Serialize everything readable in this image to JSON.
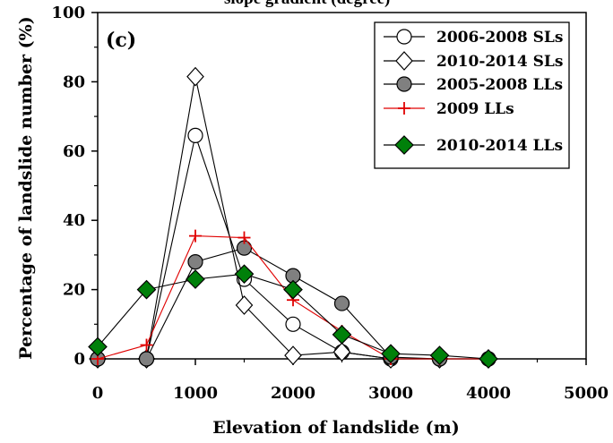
{
  "chart_data": {
    "type": "line",
    "title": "slope gradient (degree)",
    "panel_label": "(c)",
    "xlabel": "Elevation of landslide (m)",
    "ylabel": "Percentage of landslide number (%)",
    "xlim": [
      0,
      5000
    ],
    "ylim": [
      0,
      100
    ],
    "xticks": [
      "0",
      "1000",
      "2000",
      "3000",
      "4000",
      "5000"
    ],
    "yticks": [
      "0",
      "20",
      "40",
      "60",
      "80",
      "100"
    ],
    "legend_position": "top-right",
    "series": [
      {
        "name": "2006-2008 SLs",
        "marker": "circle-open",
        "x": [
          0,
          500,
          1000,
          1500,
          2000,
          2500,
          3000,
          3500,
          4000
        ],
        "y": [
          0,
          0,
          64.5,
          23,
          10,
          2,
          0,
          0,
          0
        ]
      },
      {
        "name": "2010-2014 SLs",
        "marker": "diamond-open",
        "x": [
          0,
          500,
          1000,
          1500,
          2000,
          2500,
          3000,
          3500,
          4000
        ],
        "y": [
          0,
          0,
          81.5,
          15.5,
          1,
          2,
          0,
          0,
          0
        ]
      },
      {
        "name": "2005-2008 LLs",
        "marker": "circle-gray",
        "x": [
          0,
          500,
          1000,
          1500,
          2000,
          2500,
          3000,
          3500,
          4000
        ],
        "y": [
          0,
          0,
          28,
          32,
          24,
          16,
          0.5,
          0,
          0
        ]
      },
      {
        "name": "2009 LLs",
        "marker": "plus-red",
        "x": [
          0,
          500,
          1000,
          1500,
          2000,
          2500,
          3000,
          3500,
          4000
        ],
        "y": [
          0,
          4,
          35.5,
          35,
          17,
          8,
          0,
          0,
          0
        ]
      },
      {
        "name": "2010-2014 LLs",
        "marker": "diamond-green",
        "x": [
          0,
          500,
          1000,
          1500,
          2000,
          2500,
          3000,
          3500,
          4000
        ],
        "y": [
          3.5,
          20,
          23,
          24.5,
          20,
          7,
          1.5,
          1,
          0
        ]
      }
    ],
    "colors": {
      "line": "#000000",
      "gray_fill": "#808080",
      "red_plus": "#e00000",
      "green_fill": "#00800a"
    }
  }
}
